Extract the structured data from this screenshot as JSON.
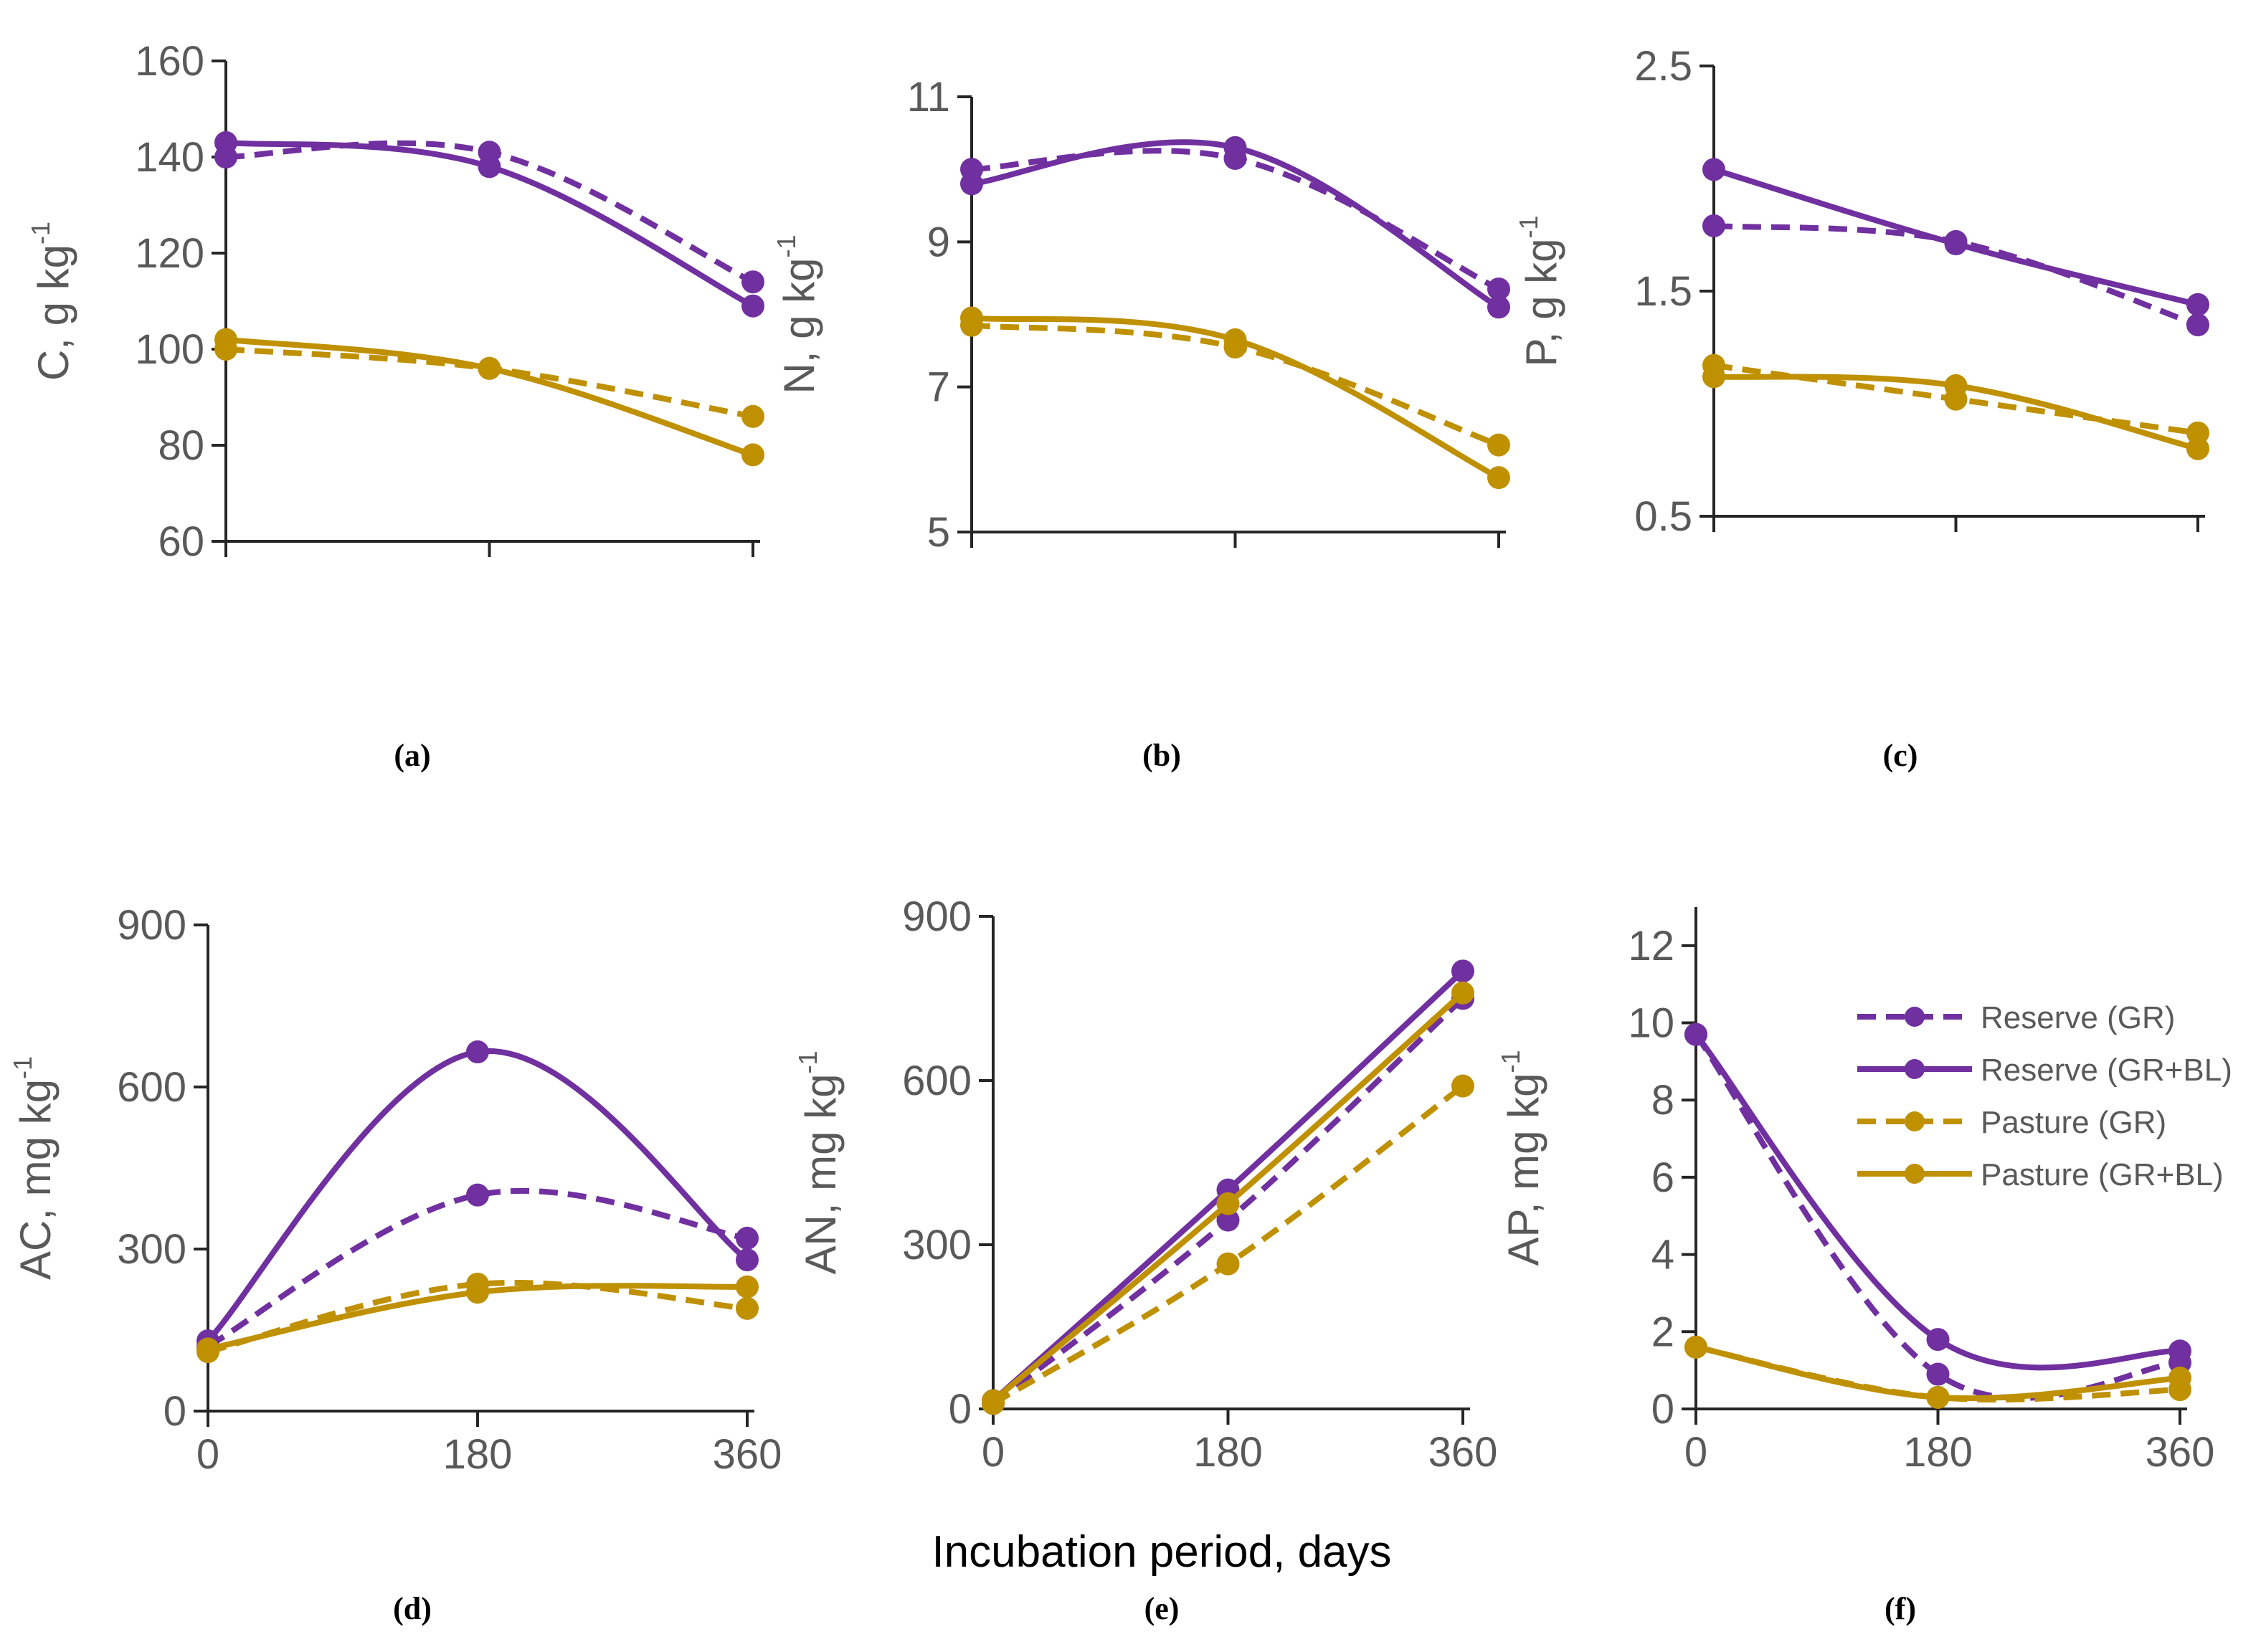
{
  "colors": {
    "reserve": "#7030a0",
    "pasture": "#bf9000",
    "axis": "#262626",
    "text": "#595959"
  },
  "shared_xlabel": "Incubation period, days",
  "legend": {
    "placement": "inside panel f, right",
    "entries": [
      {
        "label": "Reserve (GR)",
        "color": "#7030a0",
        "dash": true
      },
      {
        "label": "Reserve (GR+BL)",
        "color": "#7030a0",
        "dash": false
      },
      {
        "label": "Pasture (GR)",
        "color": "#bf9000",
        "dash": true
      },
      {
        "label": "Pasture (GR+BL)",
        "color": "#bf9000",
        "dash": false
      }
    ]
  },
  "chart_data": [
    {
      "type": "line",
      "panel_label": "(a)",
      "ylabel": "C, g kg",
      "ylabel_sup": "-1",
      "x": [
        0,
        180,
        360
      ],
      "xticklabels_shown": false,
      "ylim": [
        60,
        160
      ],
      "yticks": [
        60,
        80,
        100,
        120,
        140,
        160
      ],
      "series": [
        {
          "name": "Reserve (GR)",
          "values": [
            140,
            141,
            114
          ]
        },
        {
          "name": "Reserve (GR+BL)",
          "values": [
            143,
            138,
            109
          ]
        },
        {
          "name": "Pasture (GR)",
          "values": [
            100,
            96,
            86
          ]
        },
        {
          "name": "Pasture (GR+BL)",
          "values": [
            102,
            96,
            78
          ]
        }
      ]
    },
    {
      "type": "line",
      "panel_label": "(b)",
      "ylabel": "N, g kg",
      "ylabel_sup": "-1",
      "x": [
        0,
        180,
        360
      ],
      "xticklabels_shown": false,
      "ylim": [
        5,
        11
      ],
      "yticks": [
        5,
        7,
        9,
        11
      ],
      "series": [
        {
          "name": "Reserve (GR)",
          "values": [
            10.0,
            10.15,
            8.35
          ]
        },
        {
          "name": "Reserve (GR+BL)",
          "values": [
            9.8,
            10.3,
            8.1
          ]
        },
        {
          "name": "Pasture (GR)",
          "values": [
            7.85,
            7.55,
            6.2
          ]
        },
        {
          "name": "Pasture (GR+BL)",
          "values": [
            7.95,
            7.65,
            5.75
          ]
        }
      ]
    },
    {
      "type": "line",
      "panel_label": "(c)",
      "ylabel": "P, g kg",
      "ylabel_sup": "-1",
      "x": [
        0,
        180,
        360
      ],
      "xticklabels_shown": false,
      "ylim": [
        0.5,
        2.5
      ],
      "yticks": [
        0.5,
        1.5,
        2.5
      ],
      "series": [
        {
          "name": "Reserve (GR)",
          "values": [
            1.79,
            1.72,
            1.35
          ]
        },
        {
          "name": "Reserve (GR+BL)",
          "values": [
            2.04,
            1.71,
            1.44
          ]
        },
        {
          "name": "Pasture (GR)",
          "values": [
            1.17,
            1.02,
            0.87
          ]
        },
        {
          "name": "Pasture (GR+BL)",
          "values": [
            1.12,
            1.08,
            0.8
          ]
        }
      ]
    },
    {
      "type": "line",
      "panel_label": "(d)",
      "ylabel": "AC, mg kg",
      "ylabel_sup": "-1",
      "x": [
        0,
        180,
        360
      ],
      "xticklabels_shown": true,
      "ylim": [
        0,
        900
      ],
      "yticks": [
        0,
        300,
        600,
        900
      ],
      "series": [
        {
          "name": "Reserve (GR)",
          "values": [
            120,
            400,
            320
          ]
        },
        {
          "name": "Reserve (GR+BL)",
          "values": [
            130,
            665,
            280
          ]
        },
        {
          "name": "Pasture (GR)",
          "values": [
            110,
            235,
            190
          ]
        },
        {
          "name": "Pasture (GR+BL)",
          "values": [
            115,
            220,
            230
          ]
        }
      ]
    },
    {
      "type": "line",
      "panel_label": "(e)",
      "ylabel": "AN, mg kg",
      "ylabel_sup": "-1",
      "x": [
        0,
        180,
        360
      ],
      "xticklabels_shown": true,
      "ylim": [
        0,
        900
      ],
      "yticks": [
        0,
        300,
        600,
        900
      ],
      "series": [
        {
          "name": "Reserve (GR)",
          "values": [
            10,
            345,
            750
          ]
        },
        {
          "name": "Reserve (GR+BL)",
          "values": [
            15,
            400,
            800
          ]
        },
        {
          "name": "Pasture (GR)",
          "values": [
            10,
            265,
            590
          ]
        },
        {
          "name": "Pasture (GR+BL)",
          "values": [
            15,
            375,
            760
          ]
        }
      ]
    },
    {
      "type": "line",
      "panel_label": "(f)",
      "ylabel": "AP, mg kg",
      "ylabel_sup": "-1",
      "x": [
        0,
        180,
        360
      ],
      "xticklabels_shown": true,
      "ylim": [
        0,
        13
      ],
      "yticks": [
        0,
        2,
        4,
        6,
        8,
        10,
        12
      ],
      "series": [
        {
          "name": "Reserve (GR)",
          "values": [
            9.7,
            0.9,
            1.2
          ]
        },
        {
          "name": "Reserve (GR+BL)",
          "values": [
            9.7,
            1.8,
            1.5
          ]
        },
        {
          "name": "Pasture (GR)",
          "values": [
            1.6,
            0.3,
            0.5
          ]
        },
        {
          "name": "Pasture (GR+BL)",
          "values": [
            1.6,
            0.3,
            0.8
          ]
        }
      ]
    }
  ]
}
